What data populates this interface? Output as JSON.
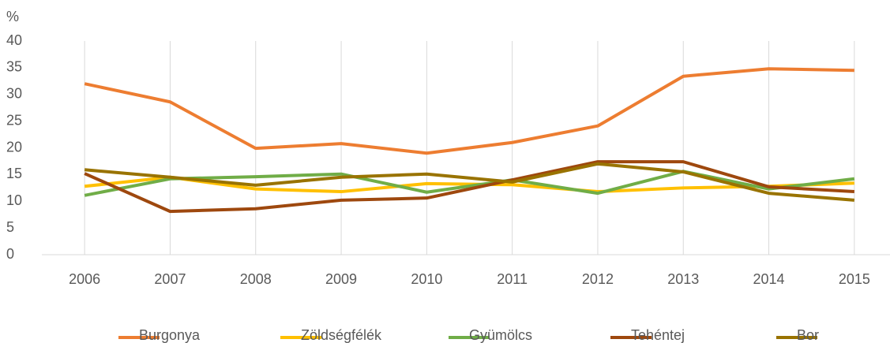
{
  "chart_data": {
    "type": "line",
    "y_label": "%",
    "categories": [
      "2006",
      "2007",
      "2008",
      "2009",
      "2010",
      "2011",
      "2012",
      "2013",
      "2014",
      "2015"
    ],
    "series": [
      {
        "name": "Burgonya",
        "color": "#ED7D31",
        "values": [
          32.0,
          28.6,
          19.9,
          20.8,
          19.0,
          21.0,
          24.1,
          33.4,
          34.8,
          34.5
        ]
      },
      {
        "name": "Zöldségfélék",
        "color": "#FFC000",
        "values": [
          12.8,
          14.5,
          12.3,
          11.8,
          13.3,
          13.1,
          11.8,
          12.5,
          12.8,
          13.4
        ]
      },
      {
        "name": "Gyümölcs",
        "color": "#70AD47",
        "values": [
          11.1,
          14.2,
          14.6,
          15.1,
          11.7,
          14.0,
          11.5,
          15.6,
          12.3,
          14.2
        ]
      },
      {
        "name": "Tehéntej",
        "color": "#9E480E",
        "values": [
          15.2,
          8.1,
          8.6,
          10.2,
          10.6,
          14.0,
          17.4,
          17.4,
          12.7,
          11.8
        ]
      },
      {
        "name": "Bor",
        "color": "#997300",
        "values": [
          15.9,
          14.5,
          13.0,
          14.5,
          15.1,
          13.6,
          17.0,
          15.5,
          11.5,
          10.2
        ]
      }
    ],
    "ylim": [
      0,
      40
    ],
    "yticks": [
      0,
      5,
      10,
      15,
      20,
      25,
      30,
      35,
      40
    ],
    "grid": "x",
    "legend": "bottom"
  }
}
